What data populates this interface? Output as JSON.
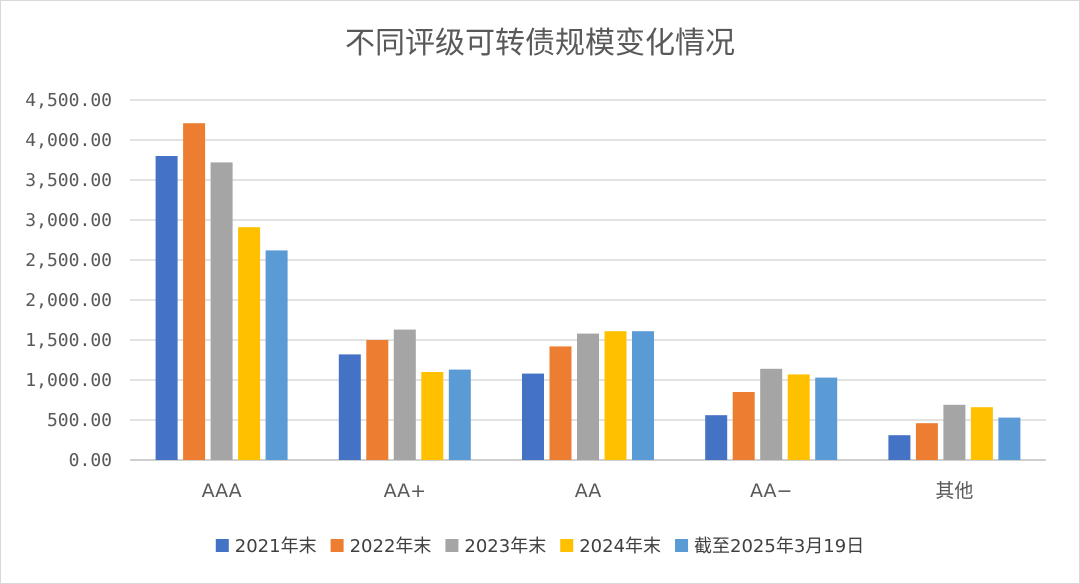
{
  "chart_data": {
    "type": "bar",
    "title": "不同评级可转债规模变化情况",
    "xlabel": "",
    "ylabel": "",
    "categories": [
      "AAA",
      "AA+",
      "AA",
      "AA−",
      "其他"
    ],
    "series": [
      {
        "name": "2021年末",
        "color": "#4472C4",
        "values": [
          3800,
          1320,
          1080,
          560,
          310
        ]
      },
      {
        "name": "2022年末",
        "color": "#ED7D31",
        "values": [
          4210,
          1500,
          1420,
          850,
          460
        ]
      },
      {
        "name": "2023年末",
        "color": "#A5A5A5",
        "values": [
          3720,
          1630,
          1580,
          1140,
          690
        ]
      },
      {
        "name": "2024年末",
        "color": "#FFC000",
        "values": [
          2910,
          1100,
          1610,
          1070,
          660
        ]
      },
      {
        "name": "截至2025年3月19日",
        "color": "#5B9BD5",
        "values": [
          2620,
          1130,
          1610,
          1030,
          530
        ]
      }
    ],
    "ylim": [
      0,
      4500
    ],
    "yticks": [
      0,
      500,
      1000,
      1500,
      2000,
      2500,
      3000,
      3500,
      4000,
      4500
    ],
    "ytick_labels": [
      "0.00",
      "500.00",
      "1,000.00",
      "1,500.00",
      "2,000.00",
      "2,500.00",
      "3,000.00",
      "3,500.00",
      "4,000.00",
      "4,500.00"
    ],
    "grid": true,
    "legend_position": "bottom"
  }
}
